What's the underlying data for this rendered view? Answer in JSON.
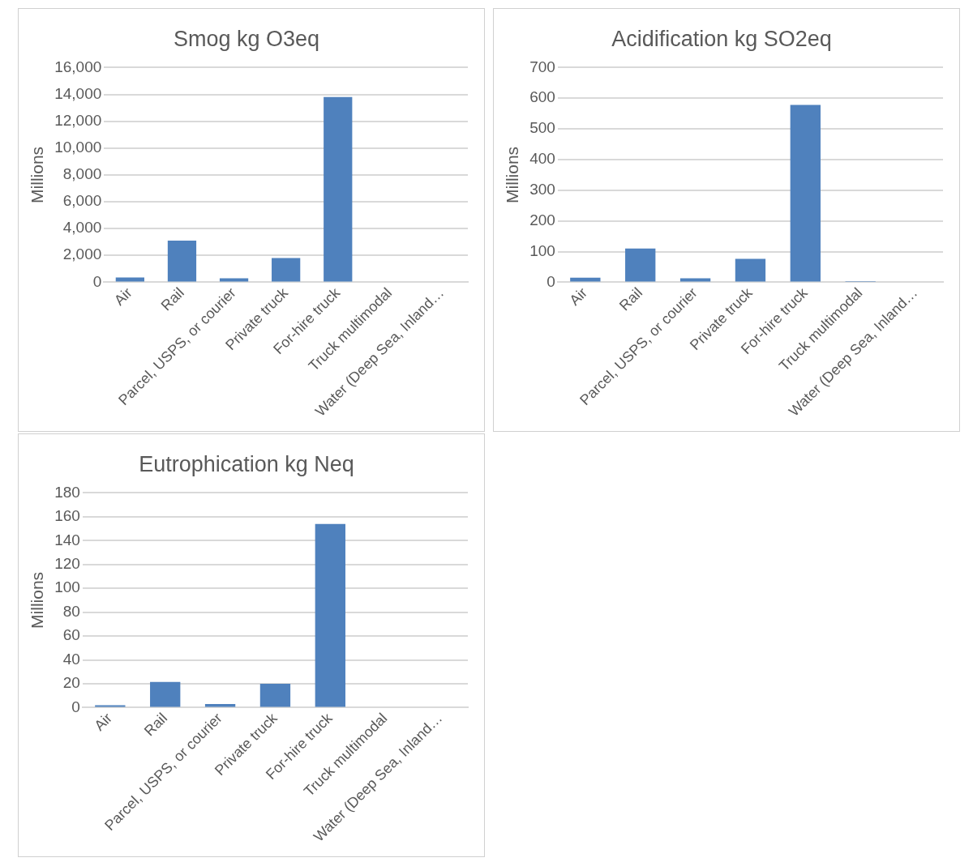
{
  "chart_data": [
    {
      "type": "bar",
      "title": "Smog kg O3eq",
      "ylabel": "Millions",
      "categories": [
        "Air",
        "Rail",
        "Parcel, USPS, or courier",
        "Private truck",
        "For-hire truck",
        "Truck multimodal",
        "Water (Deep Sea, Inland…"
      ],
      "values": [
        350,
        3100,
        300,
        1800,
        13800,
        null,
        0
      ],
      "color": "#4f81bd",
      "ylim": [
        0,
        16000
      ],
      "yticks": [
        {
          "value": 0,
          "label": "0"
        },
        {
          "value": 2000,
          "label": "2,000"
        },
        {
          "value": 4000,
          "label": "4,000"
        },
        {
          "value": 6000,
          "label": "6,000"
        },
        {
          "value": 8000,
          "label": "8,000"
        },
        {
          "value": 10000,
          "label": "10,000"
        },
        {
          "value": 12000,
          "label": "12,000"
        },
        {
          "value": 14000,
          "label": "14,000"
        },
        {
          "value": 16000,
          "label": "16,000"
        }
      ],
      "grid": "y",
      "legend": false
    },
    {
      "type": "bar",
      "title": "Acidification kg SO2eq",
      "ylabel": "Millions",
      "categories": [
        "Air",
        "Rail",
        "Parcel, USPS, or courier",
        "Private truck",
        "For-hire truck",
        "Truck multimodal",
        "Water (Deep Sea, Inland…"
      ],
      "values": [
        15,
        110,
        13,
        76,
        578,
        1,
        0
      ],
      "color": "#4f81bd",
      "ylim": [
        0,
        700
      ],
      "yticks": [
        0,
        100,
        200,
        300,
        400,
        500,
        600,
        700
      ],
      "grid": "y",
      "legend": false
    },
    {
      "type": "bar",
      "title": "Eutrophication kg Neq",
      "ylabel": "Millions",
      "categories": [
        "Air",
        "Rail",
        "Parcel, USPS, or courier",
        "Private truck",
        "For-hire truck",
        "Truck multimodal",
        "Water (Deep Sea, Inland…"
      ],
      "values": [
        2,
        21.5,
        3,
        20,
        154,
        0,
        0
      ],
      "color": "#4f81bd",
      "ylim": [
        0,
        180
      ],
      "yticks": [
        0,
        20,
        40,
        60,
        80,
        100,
        120,
        140,
        160,
        180
      ],
      "grid": "y",
      "legend": false
    }
  ]
}
